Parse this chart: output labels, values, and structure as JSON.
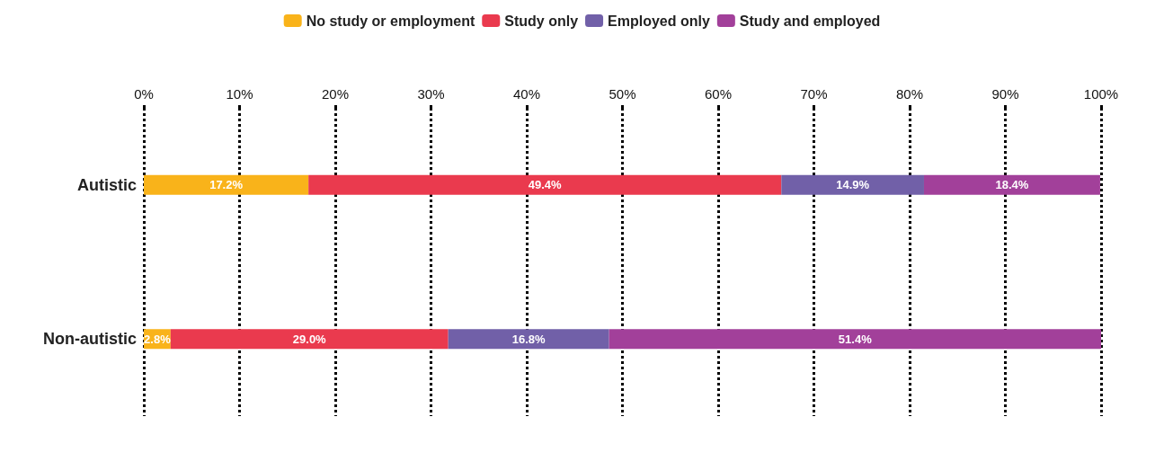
{
  "chart_data": {
    "type": "bar",
    "orientation": "horizontal",
    "stacked": true,
    "categories": [
      "Autistic",
      "Non-autistic"
    ],
    "series": [
      {
        "name": "No study or employment",
        "color": "#f9b31a",
        "values": [
          17.2,
          2.8
        ],
        "value_labels": [
          "17.2%",
          "2.8%"
        ]
      },
      {
        "name": "Study only",
        "color": "#ea3a4e",
        "values": [
          49.4,
          29.0
        ],
        "value_labels": [
          "49.4%",
          "29.0%"
        ]
      },
      {
        "name": "Employed only",
        "color": "#7160a8",
        "values": [
          14.9,
          16.8
        ],
        "value_labels": [
          "14.9%",
          "16.8%"
        ]
      },
      {
        "name": "Study and employed",
        "color": "#a2409a",
        "values": [
          18.4,
          51.4
        ],
        "value_labels": [
          "18.4%",
          "51.4%"
        ]
      }
    ],
    "xlim": [
      0,
      100
    ],
    "xticks": [
      {
        "value": 0,
        "label": "0%"
      },
      {
        "value": 10,
        "label": "10%"
      },
      {
        "value": 20,
        "label": "20%"
      },
      {
        "value": 30,
        "label": "30%"
      },
      {
        "value": 40,
        "label": "40%"
      },
      {
        "value": 50,
        "label": "50%"
      },
      {
        "value": 60,
        "label": "60%"
      },
      {
        "value": 70,
        "label": "70%"
      },
      {
        "value": 80,
        "label": "80%"
      },
      {
        "value": 90,
        "label": "90%"
      },
      {
        "value": 100,
        "label": "100%"
      }
    ],
    "grid": "x",
    "legend": "top"
  }
}
